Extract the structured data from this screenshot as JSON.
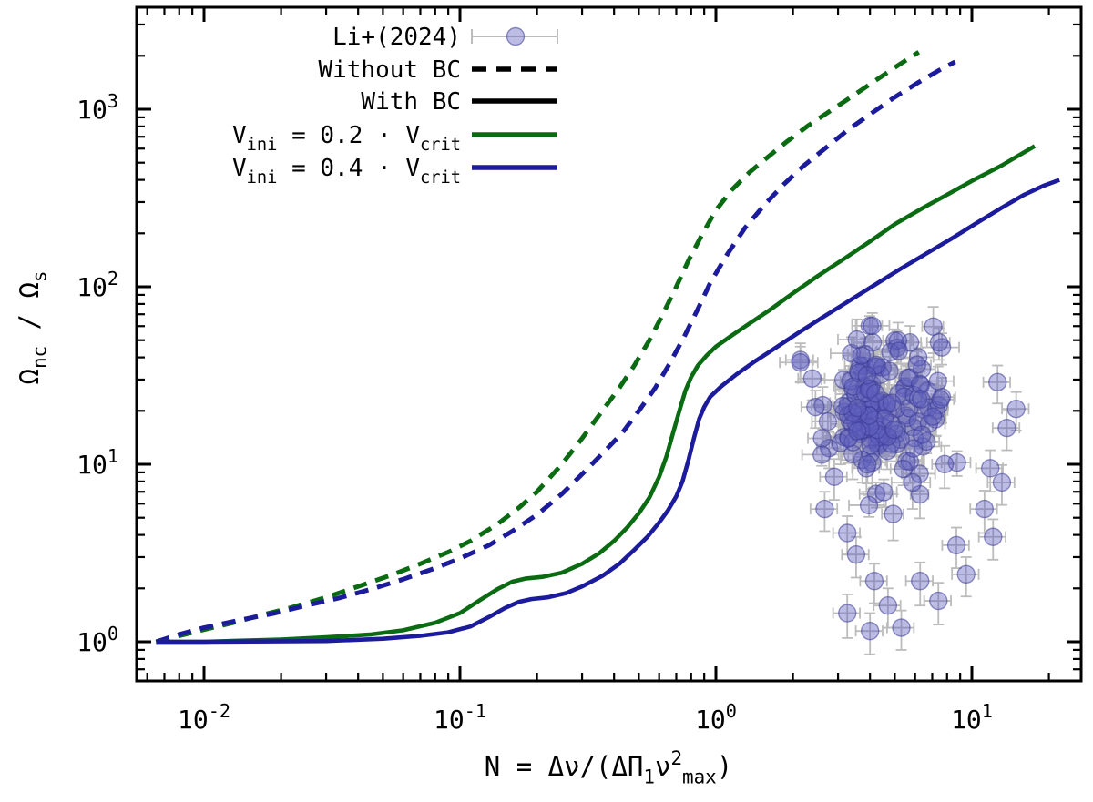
{
  "figure": {
    "background": "#ffffff",
    "colors": {
      "axis": "#000000",
      "green": "#0b6b12",
      "navy": "#1b1b9c",
      "scatter_fill": "rgba(95,95,190,0.42)",
      "scatter_edge": "rgba(60,60,150,0.55)",
      "errorbar": "#bcbcbc"
    },
    "legend": {
      "items": [
        {
          "id": "li2024",
          "sample": "errorbar-point",
          "segments": [
            [
              "Li+(2024)",
              "n"
            ]
          ]
        },
        {
          "id": "without-bc",
          "sample": "dashed-black",
          "segments": [
            [
              "Without BC",
              "n"
            ]
          ]
        },
        {
          "id": "with-bc",
          "sample": "solid-black",
          "segments": [
            [
              "With BC",
              "n"
            ]
          ]
        },
        {
          "id": "vini02",
          "sample": "solid-green",
          "segments": [
            [
              "V",
              "n"
            ],
            [
              "ini",
              "sub"
            ],
            [
              " = 0.2 · V",
              "n"
            ],
            [
              "crit",
              "sub"
            ]
          ]
        },
        {
          "id": "vini04",
          "sample": "solid-navy",
          "segments": [
            [
              "V",
              "n"
            ],
            [
              "ini",
              "sub"
            ],
            [
              " = 0.4 · V",
              "n"
            ],
            [
              "crit",
              "sub"
            ]
          ]
        }
      ]
    },
    "axes": {
      "x": {
        "title_segments": [
          [
            "N = Δν/(ΔΠ",
            "n"
          ],
          [
            "1",
            "sub"
          ],
          [
            "ν",
            "n"
          ],
          [
            "2",
            "sup"
          ],
          [
            "max",
            "sub"
          ],
          [
            ")",
            "n"
          ]
        ],
        "ticks": [
          {
            "base": "10",
            "exp": "-2",
            "value": 0.01
          },
          {
            "base": "10",
            "exp": "-1",
            "value": 0.1
          },
          {
            "base": "10",
            "exp": "0",
            "value": 1
          },
          {
            "base": "10",
            "exp": "1",
            "value": 10
          }
        ]
      },
      "y": {
        "title_segments": [
          [
            "Ω",
            "n"
          ],
          [
            "nc",
            "sub"
          ],
          [
            " / Ω",
            "n"
          ],
          [
            "s",
            "sub"
          ]
        ],
        "ticks": [
          {
            "base": "10",
            "exp": "0",
            "value": 1
          },
          {
            "base": "10",
            "exp": "1",
            "value": 10
          },
          {
            "base": "10",
            "exp": "2",
            "value": 100
          },
          {
            "base": "10",
            "exp": "3",
            "value": 1000
          }
        ]
      }
    }
  },
  "chart_data": {
    "type": "line",
    "xscale": "log",
    "yscale": "log",
    "xlabel": "N = Δν/(ΔΠ_1 ν^2_max)",
    "ylabel": "Ω_nc / Ω_s",
    "xlim": [
      0.00545,
      26.7
    ],
    "ylim": [
      0.602,
      3750
    ],
    "grid": false,
    "legend_position": "top-left-inside",
    "series": [
      {
        "name": "Without BC, V_ini = 0.2 V_crit",
        "color_key": "green",
        "style": "dashed",
        "points": [
          [
            0.0065,
            1.0
          ],
          [
            0.008,
            1.08
          ],
          [
            0.01,
            1.17
          ],
          [
            0.013,
            1.28
          ],
          [
            0.017,
            1.42
          ],
          [
            0.022,
            1.56
          ],
          [
            0.03,
            1.78
          ],
          [
            0.04,
            2.05
          ],
          [
            0.055,
            2.4
          ],
          [
            0.07,
            2.75
          ],
          [
            0.09,
            3.2
          ],
          [
            0.11,
            3.7
          ],
          [
            0.14,
            4.6
          ],
          [
            0.17,
            5.7
          ],
          [
            0.2,
            7.0
          ],
          [
            0.25,
            10
          ],
          [
            0.3,
            14
          ],
          [
            0.36,
            20
          ],
          [
            0.42,
            27
          ],
          [
            0.48,
            36
          ],
          [
            0.55,
            50
          ],
          [
            0.62,
            70
          ],
          [
            0.7,
            100
          ],
          [
            0.78,
            140
          ],
          [
            0.88,
            195
          ],
          [
            1.0,
            270
          ],
          [
            1.15,
            350
          ],
          [
            1.35,
            440
          ],
          [
            1.6,
            540
          ],
          [
            1.9,
            660
          ],
          [
            2.3,
            810
          ],
          [
            2.8,
            980
          ],
          [
            3.4,
            1180
          ],
          [
            4.2,
            1450
          ],
          [
            5.1,
            1750
          ],
          [
            6.2,
            2100
          ]
        ]
      },
      {
        "name": "Without BC, V_ini = 0.4 V_crit",
        "color_key": "navy",
        "style": "dashed",
        "points": [
          [
            0.0065,
            1.0
          ],
          [
            0.008,
            1.1
          ],
          [
            0.01,
            1.2
          ],
          [
            0.014,
            1.33
          ],
          [
            0.019,
            1.45
          ],
          [
            0.025,
            1.6
          ],
          [
            0.033,
            1.75
          ],
          [
            0.045,
            1.98
          ],
          [
            0.06,
            2.25
          ],
          [
            0.08,
            2.6
          ],
          [
            0.1,
            2.95
          ],
          [
            0.13,
            3.5
          ],
          [
            0.16,
            4.2
          ],
          [
            0.2,
            5.2
          ],
          [
            0.25,
            6.8
          ],
          [
            0.3,
            8.8
          ],
          [
            0.36,
            11.5
          ],
          [
            0.43,
            15
          ],
          [
            0.5,
            20
          ],
          [
            0.58,
            27
          ],
          [
            0.66,
            37
          ],
          [
            0.75,
            52
          ],
          [
            0.85,
            75
          ],
          [
            0.95,
            105
          ],
          [
            1.1,
            150
          ],
          [
            1.3,
            215
          ],
          [
            1.55,
            290
          ],
          [
            1.85,
            380
          ],
          [
            2.2,
            480
          ],
          [
            2.7,
            610
          ],
          [
            3.3,
            770
          ],
          [
            4.1,
            960
          ],
          [
            5.0,
            1170
          ],
          [
            6.2,
            1420
          ],
          [
            7.4,
            1650
          ],
          [
            8.6,
            1850
          ]
        ]
      },
      {
        "name": "With BC, V_ini = 0.2 V_crit",
        "color_key": "green",
        "style": "solid",
        "points": [
          [
            0.0065,
            1.0
          ],
          [
            0.01,
            1.0
          ],
          [
            0.02,
            1.03
          ],
          [
            0.03,
            1.06
          ],
          [
            0.045,
            1.1
          ],
          [
            0.06,
            1.16
          ],
          [
            0.08,
            1.28
          ],
          [
            0.1,
            1.45
          ],
          [
            0.12,
            1.72
          ],
          [
            0.14,
            1.98
          ],
          [
            0.16,
            2.18
          ],
          [
            0.18,
            2.27
          ],
          [
            0.21,
            2.32
          ],
          [
            0.25,
            2.45
          ],
          [
            0.3,
            2.75
          ],
          [
            0.35,
            3.15
          ],
          [
            0.4,
            3.7
          ],
          [
            0.45,
            4.4
          ],
          [
            0.5,
            5.3
          ],
          [
            0.55,
            6.5
          ],
          [
            0.6,
            8.5
          ],
          [
            0.64,
            11
          ],
          [
            0.68,
            15
          ],
          [
            0.72,
            20
          ],
          [
            0.76,
            26
          ],
          [
            0.8,
            31
          ],
          [
            0.85,
            36
          ],
          [
            0.92,
            41
          ],
          [
            1.0,
            46
          ],
          [
            1.15,
            53
          ],
          [
            1.35,
            62
          ],
          [
            1.6,
            73
          ],
          [
            2.0,
            92
          ],
          [
            2.5,
            115
          ],
          [
            3.2,
            145
          ],
          [
            4.0,
            180
          ],
          [
            5.0,
            225
          ],
          [
            6.5,
            280
          ],
          [
            8.0,
            330
          ],
          [
            10,
            395
          ],
          [
            13,
            480
          ],
          [
            17.6,
            620
          ]
        ]
      },
      {
        "name": "With BC, V_ini = 0.4 V_crit",
        "color_key": "navy",
        "style": "solid",
        "points": [
          [
            0.0065,
            1.0
          ],
          [
            0.01,
            1.0
          ],
          [
            0.03,
            1.01
          ],
          [
            0.05,
            1.04
          ],
          [
            0.07,
            1.08
          ],
          [
            0.09,
            1.13
          ],
          [
            0.11,
            1.22
          ],
          [
            0.13,
            1.38
          ],
          [
            0.15,
            1.55
          ],
          [
            0.17,
            1.68
          ],
          [
            0.19,
            1.74
          ],
          [
            0.22,
            1.78
          ],
          [
            0.26,
            1.88
          ],
          [
            0.3,
            2.05
          ],
          [
            0.36,
            2.35
          ],
          [
            0.42,
            2.75
          ],
          [
            0.48,
            3.3
          ],
          [
            0.54,
            3.9
          ],
          [
            0.6,
            4.7
          ],
          [
            0.65,
            5.5
          ],
          [
            0.7,
            6.6
          ],
          [
            0.74,
            8.0
          ],
          [
            0.78,
            10.5
          ],
          [
            0.82,
            14
          ],
          [
            0.86,
            18
          ],
          [
            0.9,
            21
          ],
          [
            0.95,
            24
          ],
          [
            1.05,
            27.5
          ],
          [
            1.2,
            32
          ],
          [
            1.4,
            37.5
          ],
          [
            1.7,
            45
          ],
          [
            2.1,
            55
          ],
          [
            2.6,
            67
          ],
          [
            3.3,
            83
          ],
          [
            4.2,
            103
          ],
          [
            5.3,
            127
          ],
          [
            6.8,
            157
          ],
          [
            8.5,
            190
          ],
          [
            10.5,
            230
          ],
          [
            13,
            277
          ],
          [
            16,
            330
          ],
          [
            19,
            370
          ],
          [
            22,
            400
          ]
        ]
      }
    ],
    "scatter": {
      "name": "Li+(2024)",
      "marker": "circle",
      "cluster": {
        "seed": 7,
        "n": 170,
        "center_log10": [
          0.64,
          1.33
        ],
        "sigma_log10": [
          0.12,
          0.2
        ],
        "clamp_log10_x": [
          0.33,
          1.1
        ],
        "clamp_log10_y": [
          0.72,
          1.78
        ]
      },
      "extra_points": [
        [
          2.66,
          5.6,
          1.4
        ],
        [
          3.26,
          4.1,
          1.0
        ],
        [
          3.53,
          3.1,
          0.8
        ],
        [
          4.16,
          2.2,
          0.55
        ],
        [
          4.7,
          1.6,
          0.4
        ],
        [
          5.3,
          1.2,
          0.3
        ],
        [
          6.28,
          2.2,
          0.6
        ],
        [
          7.4,
          1.7,
          0.45
        ],
        [
          8.7,
          3.5,
          0.9
        ],
        [
          9.5,
          2.4,
          0.6
        ],
        [
          11.2,
          5.6,
          1.5
        ],
        [
          12.1,
          3.9,
          1.0
        ],
        [
          13.1,
          7.9,
          2.0
        ],
        [
          3.26,
          1.45,
          0.4
        ],
        [
          4.0,
          1.15,
          0.3
        ],
        [
          14.9,
          20.5,
          5.0
        ],
        [
          12.6,
          29,
          7.0
        ],
        [
          13.7,
          16,
          4.0
        ],
        [
          11.8,
          9.5,
          2.5
        ],
        [
          2.9,
          8.5,
          2.2
        ],
        [
          2.6,
          14,
          3.5
        ],
        [
          2.45,
          21,
          5.0
        ]
      ]
    }
  }
}
